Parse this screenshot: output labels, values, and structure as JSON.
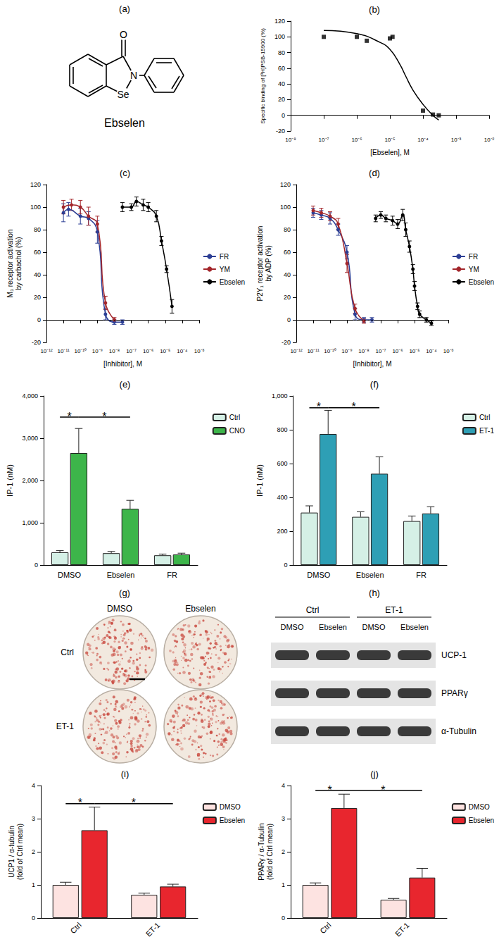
{
  "structure": {
    "label": "(a)",
    "name": "Ebselen",
    "atoms": {
      "oxygen": "O",
      "selenium": "Se",
      "nitrogen": "N"
    }
  },
  "chart_data": [
    {
      "title": "(b)",
      "type": "scatter",
      "x_label": "[Ebselen], M",
      "y_label": "Specific binding of [³H]PSB-15900 (%)",
      "log": "x",
      "xlim": [
        1e-08,
        0.01
      ],
      "xticks": [
        {
          "value": 1e-08,
          "label": "10⁻⁸"
        },
        {
          "value": 1e-07,
          "label": "10⁻⁷"
        },
        {
          "value": 1e-06,
          "label": "10⁻⁶"
        },
        {
          "value": 1e-05,
          "label": "10⁻⁵"
        },
        {
          "value": 0.0001,
          "label": "10⁻⁴"
        },
        {
          "value": 0.001,
          "label": "10⁻³"
        },
        {
          "value": 0.01,
          "label": "10⁻²"
        }
      ],
      "ylim": [
        -20,
        120
      ],
      "yticks": [
        -20,
        0,
        20,
        40,
        60,
        80,
        100,
        120
      ],
      "reference_line": {
        "y": 0,
        "line_style": "dotted"
      },
      "series": [
        {
          "type": "scatter",
          "marker": "square",
          "color": "#000000",
          "x": [
            1e-07,
            1e-06,
            2e-06,
            1e-05,
            1.2e-05,
            0.0001,
            0.0002,
            0.0003
          ],
          "values": [
            100,
            100,
            95,
            98,
            100,
            6,
            1,
            0
          ]
        },
        {
          "type": "line",
          "color": "#000000",
          "x": [
            1e-07,
            1e-06,
            5e-06,
            1e-05,
            2e-05,
            3e-05,
            5e-05,
            0.0001,
            0.0002,
            0.0003
          ],
          "values": [
            108,
            104,
            93,
            84,
            65,
            50,
            32,
            14,
            0,
            -6
          ]
        }
      ]
    },
    {
      "title": "(c)",
      "type": "line",
      "x_label": "[Inhibitor], M",
      "y_label": "M₃ receptor activation\nby carbachol (%)",
      "log": "x",
      "xlim": [
        1e-12,
        0.001
      ],
      "xticks": [
        {
          "value": 1e-12,
          "label": "10⁻¹²"
        },
        {
          "value": 1e-11,
          "label": "10⁻¹¹"
        },
        {
          "value": 1e-10,
          "label": "10⁻¹⁰"
        },
        {
          "value": 1e-09,
          "label": "10⁻⁹"
        },
        {
          "value": 1e-08,
          "label": "10⁻⁸"
        },
        {
          "value": 1e-07,
          "label": "10⁻⁷"
        },
        {
          "value": 1e-06,
          "label": "10⁻⁶"
        },
        {
          "value": 1e-05,
          "label": "10⁻⁵"
        },
        {
          "value": 0.0001,
          "label": "10⁻⁴"
        },
        {
          "value": 0.001,
          "label": "10⁻³"
        }
      ],
      "ylim": [
        -20,
        120
      ],
      "yticks": [
        -20,
        0,
        20,
        40,
        60,
        80,
        100,
        120
      ],
      "reference_line": {
        "y": 0,
        "line_style": "dotted"
      },
      "legend": "right",
      "series": [
        {
          "name": "FR",
          "marker": "circle",
          "color": "#2c3e94",
          "x": [
            1e-11,
            2e-11,
            1e-10,
            3e-10,
            1e-09,
            3e-09,
            1e-08,
            3e-08
          ],
          "values": [
            95,
            98,
            92,
            90,
            78,
            5,
            -2,
            -2
          ],
          "errors": [
            8,
            6,
            7,
            6,
            10,
            5,
            2,
            2
          ]
        },
        {
          "name": "YM",
          "marker": "circle",
          "color": "#a3262b",
          "x": [
            1e-11,
            3e-11,
            1e-10,
            3e-10,
            1e-09,
            3e-09,
            1e-08
          ],
          "values": [
            100,
            102,
            100,
            92,
            85,
            15,
            0
          ],
          "errors": [
            6,
            5,
            6,
            8,
            7,
            6,
            2
          ]
        },
        {
          "name": "Ebselen",
          "marker": "circle",
          "color": "#000000",
          "x": [
            3e-08,
            1e-07,
            2e-07,
            5e-07,
            1e-06,
            3e-06,
            6e-06,
            1.2e-05,
            2.5e-05
          ],
          "values": [
            100,
            100,
            105,
            102,
            100,
            92,
            70,
            45,
            12
          ],
          "errors": [
            4,
            3,
            4,
            5,
            4,
            5,
            4,
            3,
            6
          ]
        }
      ]
    },
    {
      "title": "(d)",
      "type": "line",
      "x_label": "[Inhibitor], M",
      "y_label": "P2Y₁ receptor activation\nby ADP (%)",
      "log": "x",
      "xlim": [
        1e-12,
        0.001
      ],
      "xticks": [
        {
          "value": 1e-12,
          "label": "10⁻¹²"
        },
        {
          "value": 1e-11,
          "label": "10⁻¹¹"
        },
        {
          "value": 1e-10,
          "label": "10⁻¹⁰"
        },
        {
          "value": 1e-09,
          "label": "10⁻⁹"
        },
        {
          "value": 1e-08,
          "label": "10⁻⁸"
        },
        {
          "value": 1e-07,
          "label": "10⁻⁷"
        },
        {
          "value": 1e-06,
          "label": "10⁻⁶"
        },
        {
          "value": 1e-05,
          "label": "10⁻⁵"
        },
        {
          "value": 0.0001,
          "label": "10⁻⁴"
        },
        {
          "value": 0.001,
          "label": "10⁻³"
        }
      ],
      "ylim": [
        -20,
        120
      ],
      "yticks": [
        -20,
        0,
        20,
        40,
        60,
        80,
        100,
        120
      ],
      "reference_line": {
        "y": 0,
        "line_style": "dotted"
      },
      "legend": "right",
      "series": [
        {
          "name": "FR",
          "marker": "circle",
          "color": "#2c3e94",
          "x": [
            1e-11,
            3e-11,
            1e-10,
            3e-10,
            1e-09,
            3e-09,
            1e-08,
            3e-08
          ],
          "values": [
            95,
            93,
            90,
            80,
            60,
            5,
            0,
            0
          ],
          "errors": [
            4,
            4,
            5,
            5,
            6,
            5,
            2,
            2
          ]
        },
        {
          "name": "YM",
          "marker": "circle",
          "color": "#a3262b",
          "x": [
            1e-11,
            3e-11,
            1e-10,
            3e-10,
            1e-09,
            3e-09,
            1e-08
          ],
          "values": [
            97,
            95,
            92,
            85,
            50,
            10,
            -1
          ],
          "errors": [
            4,
            4,
            4,
            5,
            8,
            4,
            2
          ]
        },
        {
          "name": "Ebselen",
          "marker": "circle",
          "color": "#000000",
          "x": [
            5e-08,
            1e-07,
            2e-07,
            5e-07,
            1e-06,
            2e-06,
            3e-06,
            5e-06,
            8e-06,
            1e-05,
            1.5e-05,
            2e-05,
            5e-05,
            0.0001
          ],
          "values": [
            90,
            93,
            90,
            88,
            85,
            93,
            80,
            65,
            45,
            30,
            12,
            5,
            0,
            -3
          ],
          "errors": [
            3,
            3,
            3,
            4,
            4,
            5,
            6,
            5,
            4,
            4,
            3,
            3,
            2,
            2
          ]
        }
      ]
    },
    {
      "title": "(e)",
      "type": "bar",
      "y_label": "IP-1 (nM)",
      "categories": [
        "DMSO",
        "Ebselen",
        "FR"
      ],
      "ylim": [
        0,
        4000
      ],
      "yticks": [
        0,
        {
          "value": 1000,
          "label": "1,000"
        },
        {
          "value": 2000,
          "label": "2,000"
        },
        {
          "value": 3000,
          "label": "3,000"
        },
        {
          "value": 4000,
          "label": "4,000"
        }
      ],
      "legend": "right",
      "series": [
        {
          "name": "Ctrl",
          "color": "#d5f0e6",
          "values": [
            300,
            280,
            230
          ],
          "errors": [
            40,
            40,
            30
          ]
        },
        {
          "name": "CNO",
          "color": "#3db54a",
          "values": [
            2650,
            1330,
            250
          ],
          "errors": [
            580,
            200,
            30
          ]
        }
      ],
      "significance": [
        {
          "label": "*",
          "from": {
            "category": "DMSO",
            "series": "Ctrl"
          },
          "to": {
            "category": "DMSO",
            "series": "CNO"
          },
          "y": 3500
        },
        {
          "label": "*",
          "from": {
            "category": "DMSO",
            "series": "CNO"
          },
          "to": {
            "category": "Ebselen",
            "series": "CNO"
          },
          "y": 3500
        }
      ]
    },
    {
      "title": "(f)",
      "type": "bar",
      "y_label": "IP-1 (nM)",
      "categories": [
        "DMSO",
        "Ebselen",
        "FR"
      ],
      "ylim": [
        0,
        1000
      ],
      "yticks": [
        0,
        200,
        400,
        600,
        800,
        {
          "value": 1000,
          "label": "1,000"
        }
      ],
      "legend": "right",
      "series": [
        {
          "name": "Ctrl",
          "color": "#d5f0e6",
          "values": [
            310,
            285,
            260
          ],
          "errors": [
            40,
            30,
            30
          ]
        },
        {
          "name": "ET-1",
          "color": "#2e9fb5",
          "values": [
            775,
            540,
            305
          ],
          "errors": [
            140,
            100,
            40
          ]
        }
      ],
      "significance": [
        {
          "label": "*",
          "from": {
            "category": "DMSO",
            "series": "Ctrl"
          },
          "to": {
            "category": "DMSO",
            "series": "ET-1"
          },
          "y": 930
        },
        {
          "label": "*",
          "from": {
            "category": "DMSO",
            "series": "ET-1"
          },
          "to": {
            "category": "Ebselen",
            "series": "ET-1"
          },
          "y": 930
        }
      ]
    },
    {
      "title": "(i)",
      "type": "bar",
      "y_label": "UCP1 / α-tubulin\n(fold of Ctrl mean)",
      "categories": [
        "Ctrl",
        "ET-1"
      ],
      "ylim": [
        0,
        4
      ],
      "yticks": [
        0,
        1,
        2,
        3,
        4
      ],
      "legend": "right",
      "series": [
        {
          "name": "DMSO",
          "color": "#fde3e1",
          "values": [
            1.0,
            0.7
          ],
          "errors": [
            0.08,
            0.05
          ]
        },
        {
          "name": "Ebselen",
          "color": "#e8262e",
          "values": [
            2.65,
            0.95
          ],
          "errors": [
            0.7,
            0.07
          ]
        }
      ],
      "significance": [
        {
          "label": "*",
          "from": {
            "category": "Ctrl",
            "series": "DMSO"
          },
          "to": {
            "category": "Ctrl",
            "series": "Ebselen"
          },
          "y": 3.45
        },
        {
          "label": "*",
          "from": {
            "category": "Ctrl",
            "series": "Ebselen"
          },
          "to": {
            "category": "ET-1",
            "series": "Ebselen"
          },
          "y": 3.45
        }
      ]
    },
    {
      "title": "(j)",
      "type": "bar",
      "y_label": "PPARγ / α-Tubulin\n(fold of Ctrl mean)",
      "categories": [
        "Ctrl",
        "ET-1"
      ],
      "ylim": [
        0,
        4
      ],
      "yticks": [
        0,
        1,
        2,
        3,
        4
      ],
      "legend": "right",
      "series": [
        {
          "name": "DMSO",
          "color": "#fde3e1",
          "values": [
            1.0,
            0.55
          ],
          "errors": [
            0.06,
            0.04
          ]
        },
        {
          "name": "Ebselen",
          "color": "#e8262e",
          "values": [
            3.32,
            1.22
          ],
          "errors": [
            0.42,
            0.28
          ]
        }
      ],
      "significance": [
        {
          "label": "*",
          "from": {
            "category": "Ctrl",
            "series": "DMSO"
          },
          "to": {
            "category": "Ctrl",
            "series": "Ebselen"
          },
          "y": 3.85
        },
        {
          "label": "*",
          "from": {
            "category": "Ctrl",
            "series": "Ebselen"
          },
          "to": {
            "category": "ET-1",
            "series": "Ebselen"
          },
          "y": 3.85
        }
      ]
    }
  ],
  "plates": {
    "label": "(g)",
    "columns": [
      "DMSO",
      "Ebselen"
    ],
    "rows": [
      "Ctrl",
      "ET-1"
    ]
  },
  "blot": {
    "label": "(h)",
    "groups": [
      "Ctrl",
      "ET-1"
    ],
    "lanes": [
      "DMSO",
      "Ebselen",
      "DMSO",
      "Ebselen"
    ],
    "proteins": [
      "UCP-1",
      "PPARγ",
      "α-Tubulin"
    ]
  }
}
